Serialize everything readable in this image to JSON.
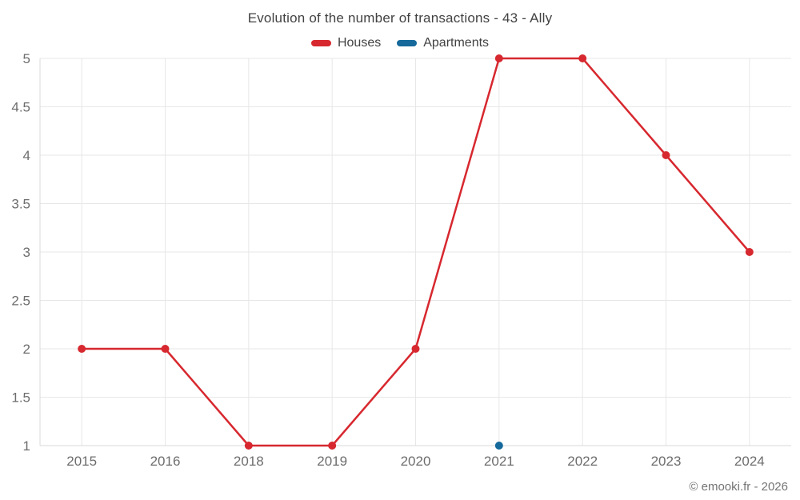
{
  "title": "Evolution of the number of transactions - 43 - Ally",
  "footer": "© emooki.fr - 2026",
  "colors": {
    "houses": "#d7282f",
    "apartments": "#15699b",
    "grid": "#e7e7e7",
    "axis": "#d9d9d9",
    "tick_text": "#6d6d6d",
    "title_text": "#424242"
  },
  "chart_data": {
    "type": "line",
    "title": "Evolution of the number of transactions - 43 - Ally",
    "categories": [
      "2015",
      "2016",
      "2018",
      "2019",
      "2020",
      "2021",
      "2022",
      "2023",
      "2024"
    ],
    "series": [
      {
        "name": "Houses",
        "color": "#d7282f",
        "values": [
          2,
          2,
          1,
          1,
          2,
          5,
          5,
          4,
          3
        ]
      },
      {
        "name": "Apartments",
        "color": "#15699b",
        "values": [
          null,
          null,
          null,
          null,
          null,
          1,
          null,
          null,
          null
        ]
      }
    ],
    "xlabel": "",
    "ylabel": "",
    "ylim": [
      1,
      5
    ],
    "yticks": [
      1,
      1.5,
      2,
      2.5,
      3,
      3.5,
      4,
      4.5,
      5
    ],
    "grid": true,
    "legend_position": "top"
  }
}
